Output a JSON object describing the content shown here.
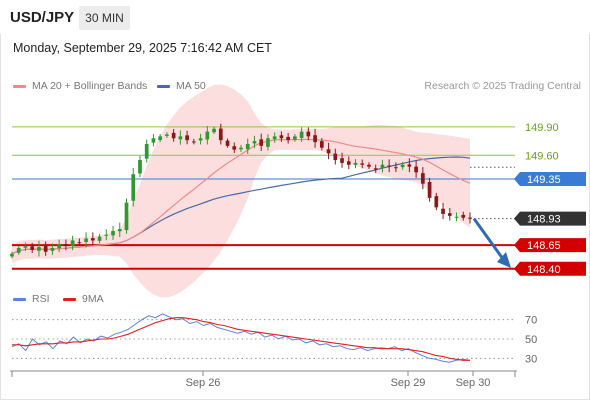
{
  "header": {
    "symbol": "USD/JPY",
    "timeframe": "30 MIN",
    "datetime": "Monday, September 29, 2025 7:16:42 AM CET"
  },
  "legend": {
    "ma20_label": "MA 20 + Bollinger Bands",
    "ma50_label": "MA 50",
    "credit": "Research © 2025 Trading Central"
  },
  "rsi_legend": {
    "rsi_label": "RSI",
    "ma_label": "9MA"
  },
  "colors": {
    "up_candle": "#2e9a2e",
    "down_candle": "#8a1818",
    "bollinger_fill": "#fbd3d3",
    "ma20": "#f08a8a",
    "ma50": "#4a6aa8",
    "resistance": "#8cc63f",
    "pivot": "#3a7bd5",
    "support": "#d40000",
    "current_price": "#333333",
    "arrow": "#2f6cb3",
    "rsi": "#5b83e0",
    "rsi_ma": "#e02020"
  },
  "chart_data": [
    {
      "type": "candlestick",
      "title": "USD/JPY",
      "timeframe": "30 MIN",
      "x_labels": [
        "Sep 26",
        "Sep 29",
        "Sep 30"
      ],
      "ylim": [
        148.25,
        150.1
      ],
      "series": [
        {
          "name": "MA 20 + Bollinger Bands"
        },
        {
          "name": "MA 50"
        }
      ],
      "levels": [
        {
          "value": 149.9,
          "label": "149.90",
          "kind": "resistance"
        },
        {
          "value": 149.6,
          "label": "149.60",
          "kind": "resistance"
        },
        {
          "value": 149.35,
          "label": "149.35",
          "kind": "pivot"
        },
        {
          "value": 148.93,
          "label": "148.93",
          "kind": "current"
        },
        {
          "value": 148.65,
          "label": "148.65",
          "kind": "support"
        },
        {
          "value": 148.4,
          "label": "148.40",
          "kind": "support"
        }
      ],
      "close_path": [
        148.56,
        148.62,
        148.64,
        148.6,
        148.63,
        148.58,
        148.62,
        148.66,
        148.64,
        148.7,
        148.68,
        148.72,
        148.7,
        148.74,
        148.76,
        148.8,
        148.82,
        149.1,
        149.4,
        149.55,
        149.72,
        149.78,
        149.8,
        149.82,
        149.78,
        149.8,
        149.76,
        149.74,
        149.78,
        149.85,
        149.88,
        149.76,
        149.7,
        149.66,
        149.68,
        149.72,
        149.75,
        149.7,
        149.78,
        149.8,
        149.78,
        149.76,
        149.8,
        149.85,
        149.8,
        149.74,
        149.68,
        149.62,
        149.55,
        149.52,
        149.5,
        149.52,
        149.5,
        149.48,
        149.45,
        149.5,
        149.48,
        149.47,
        149.5,
        149.48,
        149.42,
        149.3,
        149.15,
        149.05,
        148.98,
        148.96,
        148.95,
        148.94,
        148.93
      ]
    },
    {
      "type": "line",
      "title": "RSI",
      "ylim": [
        20,
        80
      ],
      "y_ticks": [
        70,
        50,
        30
      ],
      "x_labels": [
        "Sep 26",
        "Sep 29",
        "Sep 30"
      ],
      "series": [
        {
          "name": "RSI",
          "values": [
            42,
            45,
            38,
            50,
            44,
            47,
            40,
            48,
            45,
            52,
            46,
            50,
            48,
            53,
            51,
            55,
            57,
            60,
            65,
            70,
            74,
            72,
            76,
            73,
            70,
            71,
            66,
            68,
            64,
            66,
            62,
            60,
            58,
            56,
            58,
            55,
            57,
            52,
            54,
            50,
            53,
            49,
            50,
            46,
            48,
            44,
            45,
            42,
            43,
            40,
            39,
            41,
            38,
            40,
            41,
            40,
            42,
            38,
            40,
            36,
            33,
            30,
            29,
            27,
            26,
            28,
            29,
            28
          ]
        },
        {
          "name": "9MA",
          "values": [
            44,
            44,
            43,
            44,
            45,
            45,
            45,
            46,
            46,
            47,
            47,
            48,
            49,
            50,
            50,
            51,
            53,
            55,
            58,
            61,
            64,
            67,
            69,
            71,
            72,
            72,
            71,
            70,
            68,
            67,
            65,
            64,
            62,
            60,
            59,
            58,
            57,
            56,
            55,
            54,
            53,
            52,
            51,
            50,
            49,
            48,
            47,
            46,
            45,
            44,
            43,
            42,
            41,
            41,
            40,
            40,
            40,
            40,
            39,
            38,
            37,
            35,
            33,
            32,
            30,
            29,
            28,
            28
          ]
        }
      ]
    }
  ]
}
